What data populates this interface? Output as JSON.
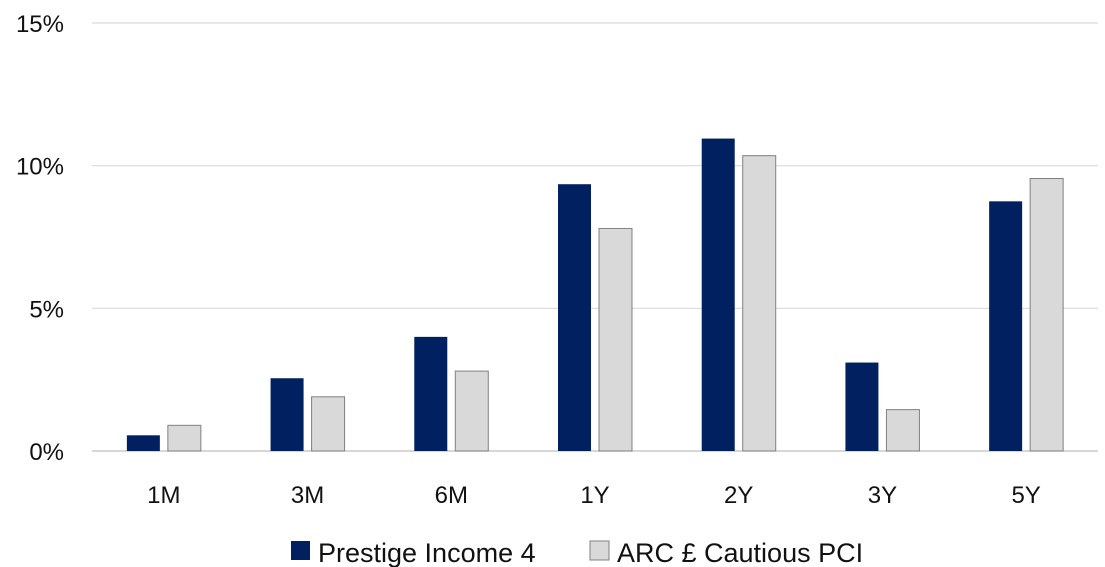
{
  "chart_data": {
    "type": "bar",
    "categories": [
      "1M",
      "3M",
      "6M",
      "1Y",
      "2Y",
      "3Y",
      "5Y"
    ],
    "series": [
      {
        "name": "Prestige Income 4",
        "values": [
          0.55,
          2.55,
          4.0,
          9.35,
          10.95,
          3.1,
          8.75
        ],
        "color": "#002060"
      },
      {
        "name": "ARC £ Cautious PCI",
        "values": [
          0.9,
          1.9,
          2.8,
          7.8,
          10.35,
          1.45,
          9.55
        ],
        "color": "#D9D9D9"
      }
    ],
    "ylim": [
      0,
      15
    ],
    "yticks": [
      "0%",
      "5%",
      "10%",
      "15%"
    ],
    "ytick_values": [
      0,
      5,
      10,
      15
    ],
    "grid": true,
    "legend_position": "bottom"
  }
}
